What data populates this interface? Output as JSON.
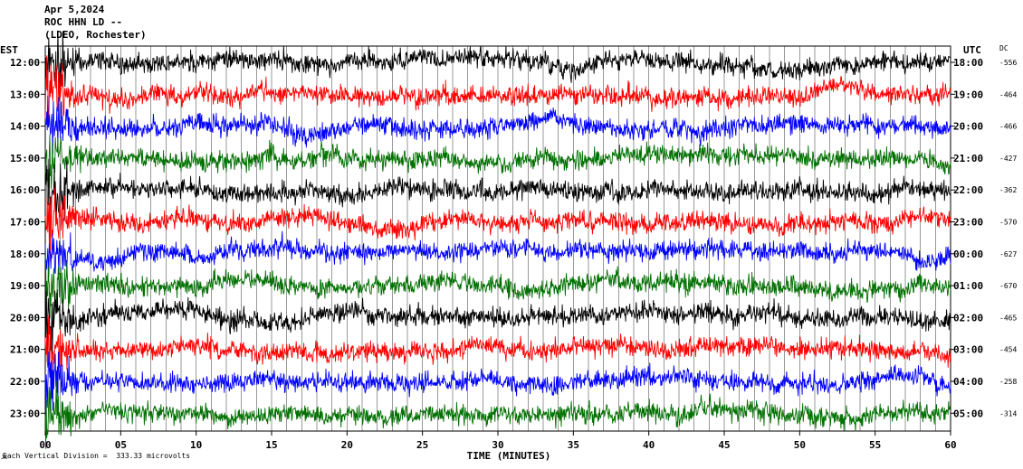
{
  "header": {
    "date": "Apr 5,2024",
    "station": "ROC HHN LD --",
    "network": "(LDEO, Rochester)"
  },
  "labels": {
    "left_zone": "EST",
    "right_zone": "UTC",
    "dc": "DC",
    "x_axis": "TIME (MINUTES)",
    "footer": "Each Vertical Division =  333.33 microvolts",
    "corner_mark": "JK"
  },
  "chart_data": {
    "type": "line",
    "xlim": [
      0,
      60
    ],
    "x_ticks": [
      "00",
      "05",
      "10",
      "15",
      "20",
      "25",
      "30",
      "35",
      "40",
      "45",
      "50",
      "55",
      "60"
    ],
    "gridlines": "vertical every minute",
    "rows": [
      {
        "est": "12:00",
        "utc": "18:00",
        "dc": "-556",
        "color": "#000000"
      },
      {
        "est": "13:00",
        "utc": "19:00",
        "dc": "-464",
        "color": "#ff0000"
      },
      {
        "est": "14:00",
        "utc": "20:00",
        "dc": "-466",
        "color": "#0000ff"
      },
      {
        "est": "15:00",
        "utc": "21:00",
        "dc": "-427",
        "color": "#007000"
      },
      {
        "est": "16:00",
        "utc": "22:00",
        "dc": "-362",
        "color": "#000000"
      },
      {
        "est": "17:00",
        "utc": "23:00",
        "dc": "-570",
        "color": "#ff0000"
      },
      {
        "est": "18:00",
        "utc": "00:00",
        "dc": "-627",
        "color": "#0000ff"
      },
      {
        "est": "19:00",
        "utc": "01:00",
        "dc": "-670",
        "color": "#007000"
      },
      {
        "est": "20:00",
        "utc": "02:00",
        "dc": "-465",
        "color": "#000000"
      },
      {
        "est": "21:00",
        "utc": "03:00",
        "dc": "-454",
        "color": "#ff0000"
      },
      {
        "est": "22:00",
        "utc": "04:00",
        "dc": "-258",
        "color": "#0000ff"
      },
      {
        "est": "23:00",
        "utc": "05:00",
        "dc": "-314",
        "color": "#007000"
      }
    ]
  }
}
